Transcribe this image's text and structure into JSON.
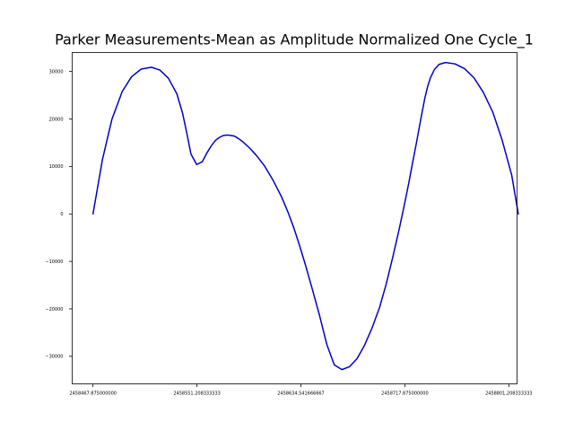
{
  "chart_data": {
    "type": "line",
    "title": "Parker Measurements-Mean as Amplitude Normalized One Cycle_1",
    "xlabel": "",
    "ylabel": "",
    "xlim": [
      2458451.2,
      2458807.8
    ],
    "ylim": [
      -35800,
      34000
    ],
    "x_ticks": [
      2458467.875,
      2458551.208333333,
      2458634.541666667,
      2458717.875,
      2458801.208333333
    ],
    "x_tick_labels": [
      "2458467.875000000",
      "2458551.208333333",
      "2458634.541666667",
      "2458717.875000000",
      "2458801.208333333"
    ],
    "y_ticks": [
      -30000,
      -20000,
      -10000,
      0,
      10000,
      20000,
      30000
    ],
    "y_tick_labels": [
      "−30000",
      "−20000",
      "−10000",
      "0",
      "10000",
      "20000",
      "30000"
    ],
    "grid": false,
    "line_color": "#0000cc",
    "series": [
      {
        "x": [
          2458467.88,
          2458475.4,
          2458483.0,
          2458491.3,
          2458498.8,
          2458506.4,
          2458514.7,
          2458521.5,
          2458528.3,
          2458535.1,
          2458539.6,
          2458542.7,
          2458546.4,
          2458551.0,
          2458555.5,
          2458559.3,
          2458563.1,
          2458566.1,
          2458569.1,
          2458572.2,
          2458574.4,
          2458576.7,
          2458579.0,
          2458581.2,
          2458584.3,
          2458588.0,
          2458593.3,
          2458598.6,
          2458605.4,
          2458612.2,
          2458619.0,
          2458624.3,
          2458628.8,
          2458633.4,
          2458637.9,
          2458643.2,
          2458649.2,
          2458655.3,
          2458661.3,
          2458667.4,
          2458673.4,
          2458679.5,
          2458685.5,
          2458691.6,
          2458697.6,
          2458702.9,
          2458708.2,
          2458713.5,
          2458717.3,
          2458721.0,
          2458724.0,
          2458727.1,
          2458729.4,
          2458731.6,
          2458733.9,
          2458736.2,
          2458738.4,
          2458741.5,
          2458745.2,
          2458750.5,
          2458758.1,
          2458765.7,
          2458773.2,
          2458780.8,
          2458788.4,
          2458795.9,
          2458803.5,
          2458808.8
        ],
        "y": [
          0,
          11400,
          19900,
          25800,
          28900,
          30500,
          30900,
          30300,
          28600,
          25300,
          21300,
          17500,
          12600,
          10400,
          11000,
          12900,
          14500,
          15500,
          16100,
          16500,
          16600,
          16600,
          16500,
          16400,
          15900,
          15200,
          13900,
          12400,
          10100,
          7100,
          3600,
          300,
          -2900,
          -6600,
          -10500,
          -15400,
          -21100,
          -27500,
          -31800,
          -32800,
          -32200,
          -30500,
          -27700,
          -24000,
          -19700,
          -14800,
          -9100,
          -3000,
          1700,
          6500,
          10700,
          14900,
          18200,
          21300,
          24400,
          26900,
          28700,
          30400,
          31500,
          31900,
          31600,
          30600,
          28700,
          25600,
          21400,
          15500,
          8200,
          0
        ]
      }
    ]
  }
}
